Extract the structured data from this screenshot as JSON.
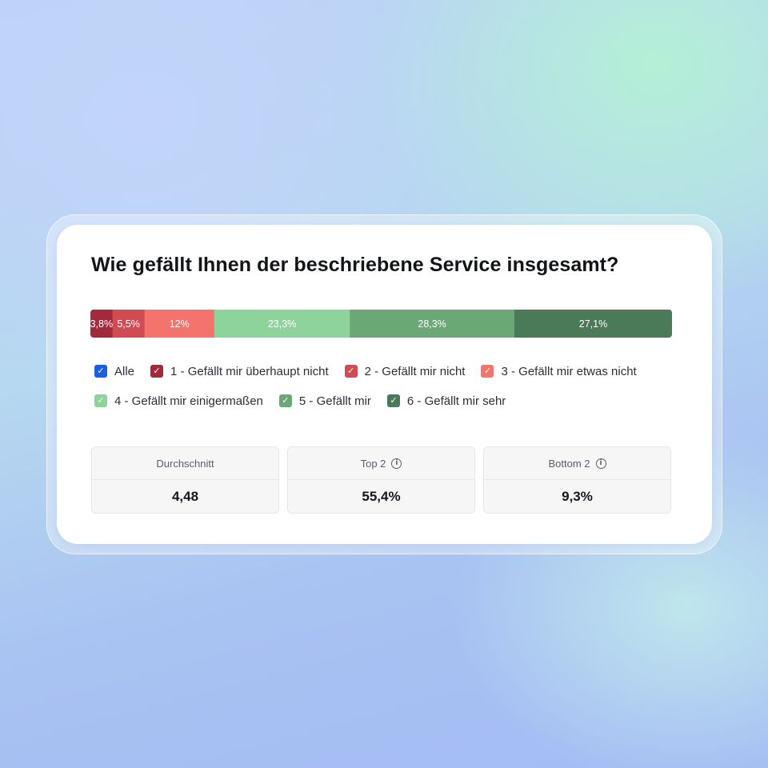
{
  "title": "Wie gefällt Ihnen der beschriebene Service insgesamt?",
  "chart_data": {
    "type": "bar",
    "orientation": "horizontal-stacked-100",
    "title": "Wie gefällt Ihnen der beschriebene Service insgesamt?",
    "categories": [
      "1 - Gefällt mir überhaupt nicht",
      "2 - Gefällt mir nicht",
      "3 - Gefällt mir etwas nicht",
      "4 - Gefällt mir einigermaßen",
      "5 - Gefällt mir",
      "6 - Gefällt mir sehr"
    ],
    "values": [
      3.8,
      5.5,
      12,
      23.3,
      28.3,
      27.1
    ],
    "data_labels": [
      "3,8%",
      "5,5%",
      "12%",
      "23,3%",
      "28,3%",
      "27,1%"
    ],
    "colors": [
      "#a3293d",
      "#d14b52",
      "#f4736c",
      "#8fd39c",
      "#6aa878",
      "#4b7a59"
    ],
    "xlim": [
      0,
      100
    ],
    "grid": false,
    "legend_position": "bottom"
  },
  "legend": [
    {
      "label": "Alle",
      "color": "#1a5fe0",
      "icon": "check-icon"
    },
    {
      "label": "1 - Gefällt mir überhaupt nicht",
      "color": "#a3293d",
      "icon": "check-icon"
    },
    {
      "label": "2 - Gefällt mir nicht",
      "color": "#d14b52",
      "icon": "check-icon"
    },
    {
      "label": "3 - Gefällt mir etwas nicht",
      "color": "#f4736c",
      "icon": "check-icon"
    },
    {
      "label": "4 - Gefällt mir einigermaßen",
      "color": "#8fd39c",
      "icon": "check-icon"
    },
    {
      "label": "5 - Gefällt mir",
      "color": "#6aa878",
      "icon": "check-icon"
    },
    {
      "label": "6 - Gefällt mir sehr",
      "color": "#4b7a59",
      "icon": "check-icon"
    }
  ],
  "stats": [
    {
      "label": "Durchschnitt",
      "value": "4,48",
      "info": false
    },
    {
      "label": "Top 2",
      "value": "55,4%",
      "info": true,
      "info_icon": "info-icon"
    },
    {
      "label": "Bottom 2",
      "value": "9,3%",
      "info": true,
      "info_icon": "info-icon"
    }
  ]
}
